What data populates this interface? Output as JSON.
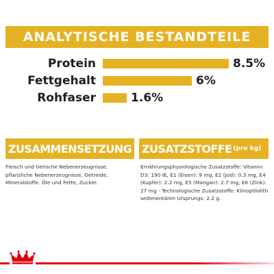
{
  "banner": {
    "title": "ANALYTISCHE BESTANDTEILE"
  },
  "nutrients": [
    {
      "label": "Protein",
      "value": "8.5%",
      "amount": 8.5
    },
    {
      "label": "Fettgehalt",
      "value": "6%",
      "amount": 6
    },
    {
      "label": "Rohfaser",
      "value": "1.6%",
      "amount": 1.6
    }
  ],
  "composition": {
    "title": "ZUSAMMENSETZUNG",
    "text": "Fleisch und tierische Nebenerzeugnisse, pflanzliche Nebenerzeugnisse, Getreide, Mineralstoffe. Öle und Fette, Zucker."
  },
  "additives": {
    "title": "ZUSATZSTOFFE",
    "suffix": "(pro kg)",
    "text": "Ernährungsphysiologische Zusatzstoffe: Vitamin D3: 190 IE, E1 (Eisen): 9 mg, E2 (Jod): 0.3 mg, E4 (Kupfer): 2.2 mg, E5 (Mangan): 2.7 mg, E6 (Zink): 27 mg - Technologische Zusatzstoffe: Klinoptilolith sedimentären Ursprungs: 2.2 g."
  },
  "colors": {
    "accent": "#e5b224",
    "brand_red": "#e1000f",
    "text": "#1f1f1f"
  },
  "footer": {
    "logo_icon": "royal-canin-crown-icon"
  }
}
